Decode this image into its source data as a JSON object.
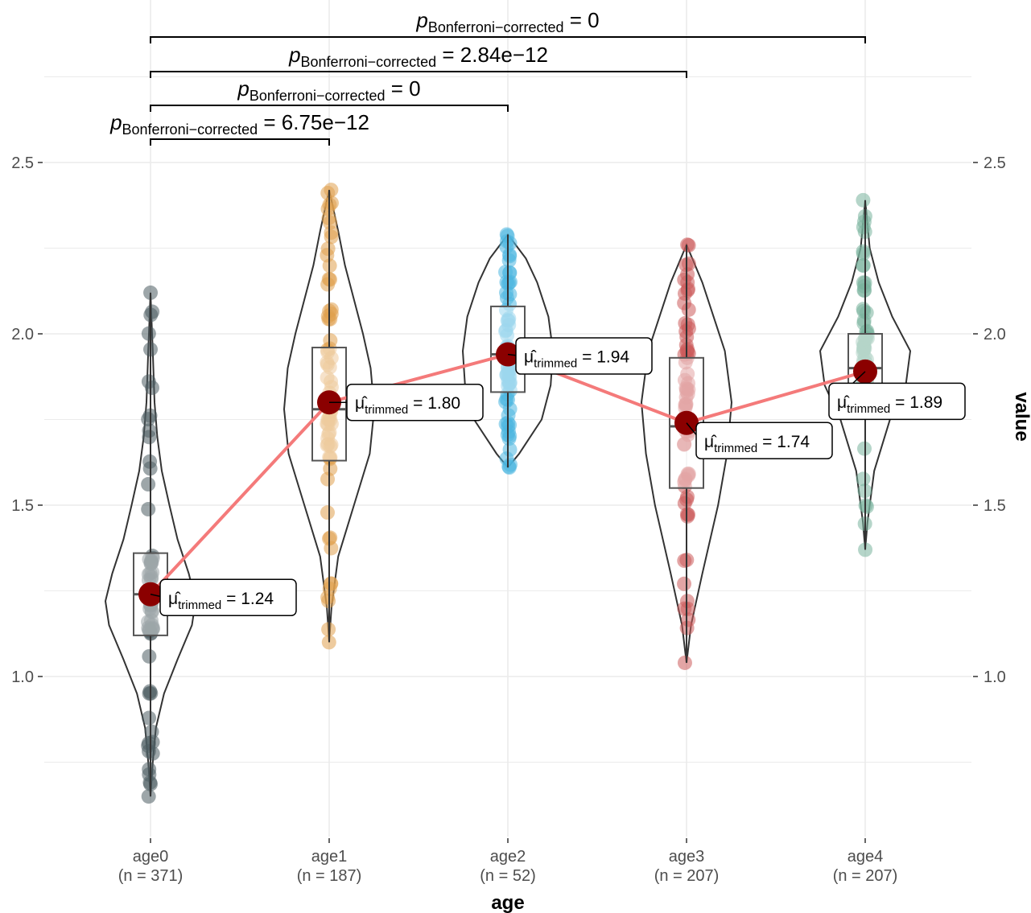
{
  "chart_data": {
    "type": "violin",
    "xlabel": "age",
    "ylabel": "value",
    "ylim": [
      0.55,
      2.95
    ],
    "y_ticks": [
      "1.0",
      "1.5",
      "2.0",
      "2.5"
    ],
    "grid": true,
    "colors": {
      "mean_point": "#8b0000",
      "mean_line": "#f47a7a",
      "outline": "#333333",
      "gridline": "#ebebeb"
    },
    "groups": [
      {
        "name": "age0",
        "n_label": "(n = 371)",
        "color": "#4c5d63",
        "min": 0.65,
        "q1": 1.12,
        "median": 1.24,
        "q3": 1.36,
        "max": 2.12,
        "mean_value": 1.24,
        "mean_label": "1.24",
        "density": [
          [
            0.65,
            0
          ],
          [
            0.75,
            0.05
          ],
          [
            0.85,
            0.12
          ],
          [
            0.95,
            0.3
          ],
          [
            1.05,
            0.6
          ],
          [
            1.15,
            0.92
          ],
          [
            1.22,
            1.0
          ],
          [
            1.3,
            0.85
          ],
          [
            1.4,
            0.6
          ],
          [
            1.5,
            0.42
          ],
          [
            1.6,
            0.25
          ],
          [
            1.7,
            0.15
          ],
          [
            1.8,
            0.09
          ],
          [
            1.95,
            0.05
          ],
          [
            2.12,
            0
          ]
        ]
      },
      {
        "name": "age1",
        "n_label": "(n = 187)",
        "color": "#e0a04e",
        "min": 1.1,
        "q1": 1.63,
        "median": 1.78,
        "q3": 1.96,
        "max": 2.42,
        "mean_value": 1.8,
        "mean_label": "1.80",
        "density": [
          [
            1.1,
            0
          ],
          [
            1.2,
            0.05
          ],
          [
            1.35,
            0.2
          ],
          [
            1.5,
            0.55
          ],
          [
            1.65,
            0.9
          ],
          [
            1.78,
            1.0
          ],
          [
            1.9,
            0.92
          ],
          [
            2.0,
            0.75
          ],
          [
            2.1,
            0.55
          ],
          [
            2.2,
            0.35
          ],
          [
            2.3,
            0.2
          ],
          [
            2.42,
            0
          ]
        ]
      },
      {
        "name": "age2",
        "n_label": "(n = 52)",
        "color": "#4db6e0",
        "min": 1.61,
        "q1": 1.83,
        "median": 1.94,
        "q3": 2.08,
        "max": 2.29,
        "mean_value": 1.94,
        "mean_label": "1.94",
        "density": [
          [
            1.61,
            0
          ],
          [
            1.65,
            0.25
          ],
          [
            1.75,
            0.75
          ],
          [
            1.85,
            0.95
          ],
          [
            1.95,
            1.0
          ],
          [
            2.05,
            0.9
          ],
          [
            2.15,
            0.65
          ],
          [
            2.22,
            0.4
          ],
          [
            2.29,
            0
          ]
        ]
      },
      {
        "name": "age3",
        "n_label": "(n = 207)",
        "color": "#cc5b5b",
        "min": 1.04,
        "q1": 1.55,
        "median": 1.73,
        "q3": 1.93,
        "max": 2.26,
        "mean_value": 1.74,
        "mean_label": "1.74",
        "density": [
          [
            1.04,
            0
          ],
          [
            1.15,
            0.1
          ],
          [
            1.3,
            0.35
          ],
          [
            1.5,
            0.7
          ],
          [
            1.65,
            0.9
          ],
          [
            1.8,
            1.0
          ],
          [
            1.95,
            0.85
          ],
          [
            2.05,
            0.6
          ],
          [
            2.15,
            0.35
          ],
          [
            2.26,
            0
          ]
        ]
      },
      {
        "name": "age4",
        "n_label": "(n = 207)",
        "color": "#79b29c",
        "min": 1.37,
        "q1": 1.85,
        "median": 1.9,
        "q3": 2.0,
        "max": 2.39,
        "mean_value": 1.89,
        "mean_label": "1.89",
        "density": [
          [
            1.37,
            0
          ],
          [
            1.45,
            0.05
          ],
          [
            1.6,
            0.2
          ],
          [
            1.75,
            0.55
          ],
          [
            1.85,
            0.9
          ],
          [
            1.95,
            1.0
          ],
          [
            2.05,
            0.6
          ],
          [
            2.15,
            0.3
          ],
          [
            2.25,
            0.1
          ],
          [
            2.39,
            0
          ]
        ]
      }
    ],
    "mean_annotation": {
      "symbol": "μ̂",
      "subscript": "trimmed",
      "equals": " = "
    },
    "comparisons": [
      {
        "from": "age0",
        "to": "age1",
        "symbol": "p",
        "subscript": "Bonferroni−corrected",
        "value": " = 6.75e−12"
      },
      {
        "from": "age0",
        "to": "age2",
        "symbol": "p",
        "subscript": "Bonferroni−corrected",
        "value": " = 0"
      },
      {
        "from": "age0",
        "to": "age3",
        "symbol": "p",
        "subscript": "Bonferroni−corrected",
        "value": " = 2.84e−12"
      },
      {
        "from": "age0",
        "to": "age4",
        "symbol": "p",
        "subscript": "Bonferroni−corrected",
        "value": " = 0"
      }
    ]
  }
}
